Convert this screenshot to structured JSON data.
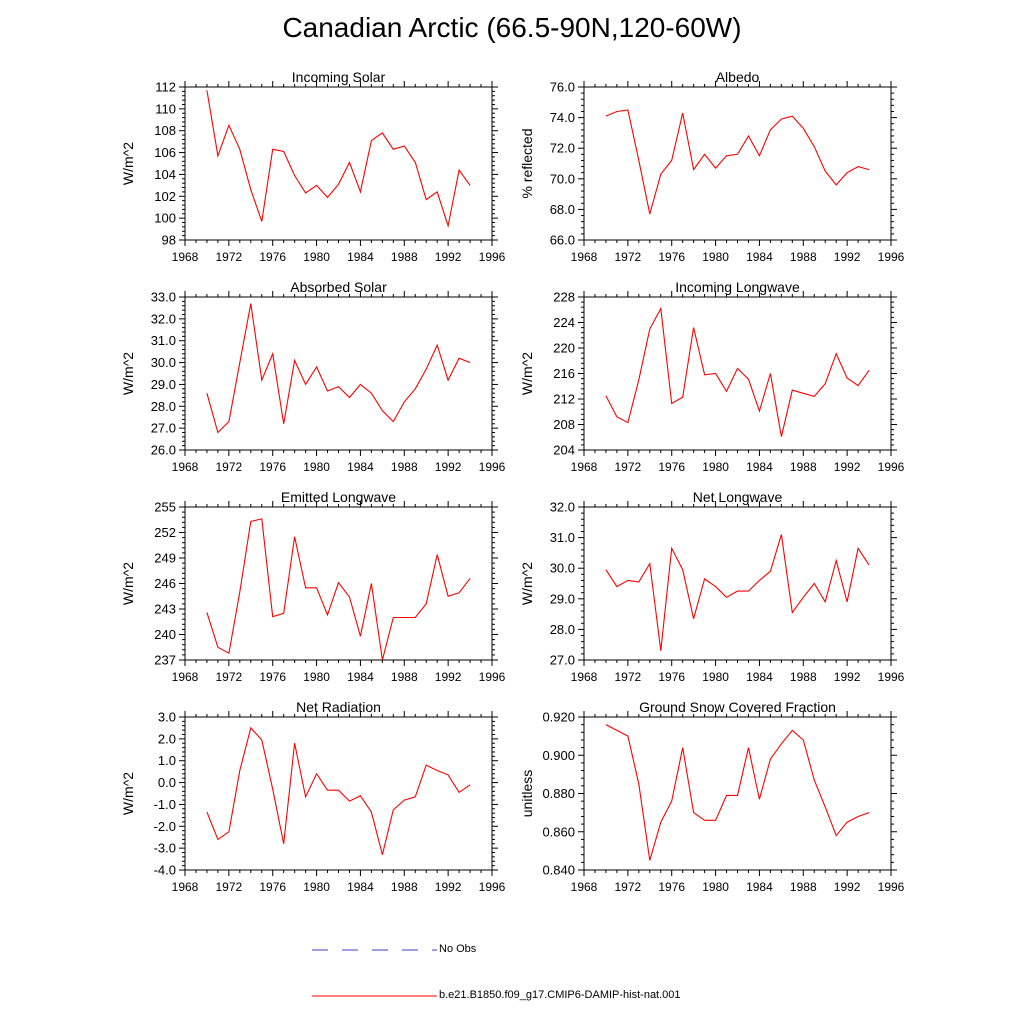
{
  "page": {
    "title": "Canadian Arctic (66.5-90N,120-60W)"
  },
  "legend": [
    {
      "label": "No Obs",
      "color": "#3b3bd6",
      "dash": true
    },
    {
      "label": "b.e21.B1850.f09_g17.CMIP6-DAMIP-hist-nat.001",
      "color": "#ff0000",
      "dash": false
    }
  ],
  "chart_data": [
    {
      "type": "line",
      "title": "Incoming Solar",
      "xlabel": "",
      "ylabel": "W/m^2",
      "xlim": [
        1968,
        1996
      ],
      "xticks": [
        1968,
        1972,
        1976,
        1980,
        1984,
        1988,
        1992,
        1996
      ],
      "ylim": [
        98,
        112
      ],
      "yticks": [
        98,
        100,
        102,
        104,
        106,
        108,
        110,
        112
      ],
      "ytick_labels": [
        "98",
        "100",
        "102",
        "104",
        "106",
        "108",
        "110",
        "112"
      ],
      "series": [
        {
          "color": "#ff0000",
          "x": [
            1970,
            1971,
            1972,
            1973,
            1974,
            1975,
            1976,
            1977,
            1978,
            1979,
            1980,
            1981,
            1982,
            1983,
            1984,
            1985,
            1986,
            1987,
            1988,
            1989,
            1990,
            1991,
            1992,
            1993,
            1994
          ],
          "y": [
            111.7,
            105.7,
            108.5,
            106.3,
            102.6,
            99.7,
            106.3,
            106.1,
            103.9,
            102.3,
            103.0,
            101.9,
            103.1,
            105.1,
            102.4,
            107.1,
            107.8,
            106.3,
            106.6,
            105.1,
            101.7,
            102.4,
            99.3,
            104.4,
            103.0
          ]
        }
      ]
    },
    {
      "type": "line",
      "title": "Albedo",
      "xlabel": "",
      "ylabel": "% reflected",
      "xlim": [
        1968,
        1996
      ],
      "xticks": [
        1968,
        1972,
        1976,
        1980,
        1984,
        1988,
        1992,
        1996
      ],
      "ylim": [
        66,
        76
      ],
      "yticks": [
        66,
        68,
        70,
        72,
        74,
        76
      ],
      "ytick_labels": [
        "66.0",
        "68.0",
        "70.0",
        "72.0",
        "74.0",
        "76.0"
      ],
      "series": [
        {
          "color": "#ff0000",
          "x": [
            1970,
            1971,
            1972,
            1973,
            1974,
            1975,
            1976,
            1977,
            1978,
            1979,
            1980,
            1981,
            1982,
            1983,
            1984,
            1985,
            1986,
            1987,
            1988,
            1989,
            1990,
            1991,
            1992,
            1993,
            1994
          ],
          "y": [
            74.1,
            74.4,
            74.5,
            71.2,
            67.7,
            70.3,
            71.2,
            74.3,
            70.6,
            71.6,
            70.7,
            71.5,
            71.6,
            72.8,
            71.5,
            73.2,
            73.9,
            74.1,
            73.3,
            72.1,
            70.5,
            69.6,
            70.4,
            70.8,
            70.6
          ]
        }
      ]
    },
    {
      "type": "line",
      "title": "Absorbed Solar",
      "xlabel": "",
      "ylabel": "W/m^2",
      "xlim": [
        1968,
        1996
      ],
      "xticks": [
        1968,
        1972,
        1976,
        1980,
        1984,
        1988,
        1992,
        1996
      ],
      "ylim": [
        26,
        33
      ],
      "yticks": [
        26,
        27,
        28,
        29,
        30,
        31,
        32,
        33
      ],
      "ytick_labels": [
        "26.0",
        "27.0",
        "28.0",
        "29.0",
        "30.0",
        "31.0",
        "32.0",
        "33.0"
      ],
      "series": [
        {
          "color": "#ff0000",
          "x": [
            1970,
            1971,
            1972,
            1973,
            1974,
            1975,
            1976,
            1977,
            1978,
            1979,
            1980,
            1981,
            1982,
            1983,
            1984,
            1985,
            1986,
            1987,
            1988,
            1989,
            1990,
            1991,
            1992,
            1993,
            1994
          ],
          "y": [
            28.6,
            26.8,
            27.3,
            30.0,
            32.7,
            29.2,
            30.4,
            27.2,
            30.1,
            29.0,
            29.8,
            28.7,
            28.9,
            28.4,
            29.0,
            28.6,
            27.8,
            27.3,
            28.2,
            28.8,
            29.7,
            30.8,
            29.2,
            30.2,
            30.0
          ]
        }
      ]
    },
    {
      "type": "line",
      "title": "Incoming Longwave",
      "xlabel": "",
      "ylabel": "W/m^2",
      "xlim": [
        1968,
        1996
      ],
      "xticks": [
        1968,
        1972,
        1976,
        1980,
        1984,
        1988,
        1992,
        1996
      ],
      "ylim": [
        204,
        228
      ],
      "yticks": [
        204,
        208,
        212,
        216,
        220,
        224,
        228
      ],
      "ytick_labels": [
        "204",
        "208",
        "212",
        "216",
        "220",
        "224",
        "228"
      ],
      "series": [
        {
          "color": "#ff0000",
          "x": [
            1970,
            1971,
            1972,
            1973,
            1974,
            1975,
            1976,
            1977,
            1978,
            1979,
            1980,
            1981,
            1982,
            1983,
            1984,
            1985,
            1986,
            1987,
            1988,
            1989,
            1990,
            1991,
            1992,
            1993,
            1994
          ],
          "y": [
            212.5,
            209.2,
            208.3,
            215.0,
            223.0,
            226.2,
            211.3,
            212.3,
            223.2,
            215.8,
            216.0,
            213.2,
            216.8,
            215.1,
            210.1,
            216.0,
            206.1,
            213.4,
            212.9,
            212.4,
            214.4,
            219.1,
            215.3,
            214.1,
            216.5
          ]
        }
      ]
    },
    {
      "type": "line",
      "title": "Emitted Longwave",
      "xlabel": "",
      "ylabel": "W/m^2",
      "xlim": [
        1968,
        1996
      ],
      "xticks": [
        1968,
        1972,
        1976,
        1980,
        1984,
        1988,
        1992,
        1996
      ],
      "ylim": [
        237,
        255
      ],
      "yticks": [
        237,
        240,
        243,
        246,
        249,
        252,
        255
      ],
      "ytick_labels": [
        "237",
        "240",
        "243",
        "246",
        "249",
        "252",
        "255"
      ],
      "series": [
        {
          "color": "#ff0000",
          "x": [
            1970,
            1971,
            1972,
            1973,
            1974,
            1975,
            1976,
            1977,
            1978,
            1979,
            1980,
            1981,
            1982,
            1983,
            1984,
            1985,
            1986,
            1987,
            1988,
            1989,
            1990,
            1991,
            1992,
            1993,
            1994
          ],
          "y": [
            242.6,
            238.5,
            237.8,
            245.0,
            253.3,
            253.6,
            242.1,
            242.5,
            251.5,
            245.5,
            245.5,
            242.3,
            246.1,
            244.4,
            239.8,
            246.0,
            237.0,
            242.0,
            242.0,
            242.0,
            243.6,
            249.4,
            244.5,
            244.9,
            246.6
          ]
        }
      ]
    },
    {
      "type": "line",
      "title": "Net Longwave",
      "xlabel": "",
      "ylabel": "W/m^2",
      "xlim": [
        1968,
        1996
      ],
      "xticks": [
        1968,
        1972,
        1976,
        1980,
        1984,
        1988,
        1992,
        1996
      ],
      "ylim": [
        27,
        32
      ],
      "yticks": [
        27,
        28,
        29,
        30,
        31,
        32
      ],
      "ytick_labels": [
        "27.0",
        "28.0",
        "29.0",
        "30.0",
        "31.0",
        "32.0"
      ],
      "series": [
        {
          "color": "#ff0000",
          "x": [
            1970,
            1971,
            1972,
            1973,
            1974,
            1975,
            1976,
            1977,
            1978,
            1979,
            1980,
            1981,
            1982,
            1983,
            1984,
            1985,
            1986,
            1987,
            1988,
            1989,
            1990,
            1991,
            1992,
            1993,
            1994
          ],
          "y": [
            29.95,
            29.4,
            29.6,
            29.55,
            30.15,
            27.3,
            30.65,
            29.95,
            28.35,
            29.65,
            29.4,
            29.05,
            29.25,
            29.25,
            29.6,
            29.9,
            31.1,
            28.55,
            29.05,
            29.5,
            28.9,
            30.25,
            28.9,
            30.65,
            30.1
          ]
        }
      ]
    },
    {
      "type": "line",
      "title": "Net Radiation",
      "xlabel": "",
      "ylabel": "W/m^2",
      "xlim": [
        1968,
        1996
      ],
      "xticks": [
        1968,
        1972,
        1976,
        1980,
        1984,
        1988,
        1992,
        1996
      ],
      "ylim": [
        -4,
        3
      ],
      "yticks": [
        -4,
        -3,
        -2,
        -1,
        0,
        1,
        2,
        3
      ],
      "ytick_labels": [
        "-4.0",
        "-3.0",
        "-2.0",
        "-1.0",
        "0.0",
        "1.0",
        "2.0",
        "3.0"
      ],
      "series": [
        {
          "color": "#ff0000",
          "x": [
            1970,
            1971,
            1972,
            1973,
            1974,
            1975,
            1976,
            1977,
            1978,
            1979,
            1980,
            1981,
            1982,
            1983,
            1984,
            1985,
            1986,
            1987,
            1988,
            1989,
            1990,
            1991,
            1992,
            1993,
            1994
          ],
          "y": [
            -1.35,
            -2.6,
            -2.25,
            0.55,
            2.5,
            1.95,
            -0.3,
            -2.8,
            1.8,
            -0.65,
            0.4,
            -0.35,
            -0.35,
            -0.85,
            -0.6,
            -1.35,
            -3.3,
            -1.25,
            -0.8,
            -0.65,
            0.8,
            0.55,
            0.35,
            -0.45,
            -0.1
          ]
        }
      ]
    },
    {
      "type": "line",
      "title": "Ground Snow Covered Fraction",
      "xlabel": "",
      "ylabel": "unitless",
      "xlim": [
        1968,
        1996
      ],
      "xticks": [
        1968,
        1972,
        1976,
        1980,
        1984,
        1988,
        1992,
        1996
      ],
      "ylim": [
        0.84,
        0.92
      ],
      "yticks": [
        0.84,
        0.86,
        0.88,
        0.9,
        0.92
      ],
      "ytick_labels": [
        "0.840",
        "0.860",
        "0.880",
        "0.900",
        "0.920"
      ],
      "series": [
        {
          "color": "#ff0000",
          "x": [
            1970,
            1971,
            1972,
            1973,
            1974,
            1975,
            1976,
            1977,
            1978,
            1979,
            1980,
            1981,
            1982,
            1983,
            1984,
            1985,
            1986,
            1987,
            1988,
            1989,
            1990,
            1991,
            1992,
            1993,
            1994
          ],
          "y": [
            0.916,
            0.913,
            0.91,
            0.885,
            0.845,
            0.865,
            0.876,
            0.904,
            0.87,
            0.866,
            0.866,
            0.879,
            0.879,
            0.904,
            0.877,
            0.898,
            0.906,
            0.913,
            0.908,
            0.887,
            0.873,
            0.858,
            0.865,
            0.868,
            0.87
          ]
        }
      ]
    }
  ]
}
